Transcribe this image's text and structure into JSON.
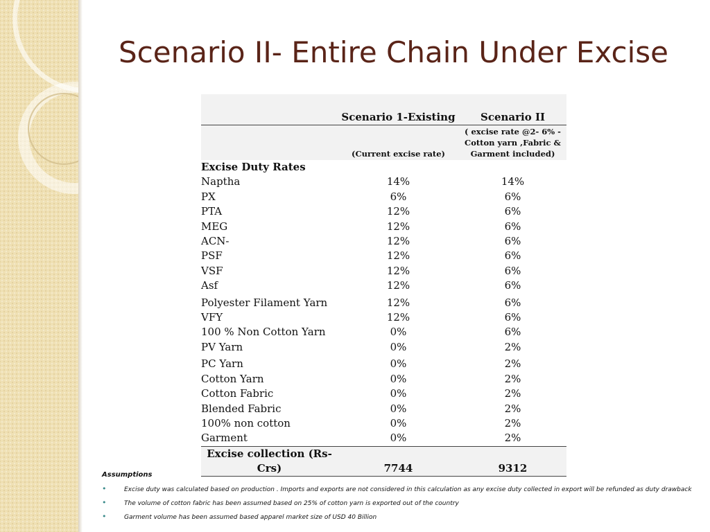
{
  "title": "Scenario II- Entire Chain Under Excise",
  "table": {
    "header": {
      "col2": "Scenario 1-Existing",
      "col3": "Scenario II",
      "col2_sub": "(Current excise rate)",
      "col3_sub": "(  excise rate @2- 6% -Cotton yarn ,Fabric & Garment included)"
    },
    "section_label": "Excise Duty Rates",
    "rows": [
      {
        "item": "Naptha",
        "existing": "14%",
        "scenario2": "14%"
      },
      {
        "item": "PX",
        "existing": "6%",
        "scenario2": "6%"
      },
      {
        "item": "PTA",
        "existing": "12%",
        "scenario2": "6%"
      },
      {
        "item": "MEG",
        "existing": "12%",
        "scenario2": "6%"
      },
      {
        "item": "ACN-",
        "existing": "12%",
        "scenario2": "6%"
      },
      {
        "item": "PSF",
        "existing": "12%",
        "scenario2": "6%"
      },
      {
        "item": "VSF",
        "existing": "12%",
        "scenario2": "6%"
      },
      {
        "item": "Asf",
        "existing": "12%",
        "scenario2": "6%"
      },
      {
        "item": "Polyester Filament Yarn",
        "existing": "12%",
        "scenario2": "6%"
      },
      {
        "item": "VFY",
        "existing": "12%",
        "scenario2": "6%"
      },
      {
        "item": "100 % Non Cotton Yarn",
        "existing": "0%",
        "scenario2": "6%"
      },
      {
        "item": "PV Yarn",
        "existing": "0%",
        "scenario2": "2%"
      },
      {
        "item": "PC Yarn",
        "existing": "0%",
        "scenario2": "2%"
      },
      {
        "item": "Cotton Yarn",
        "existing": "0%",
        "scenario2": "2%"
      },
      {
        "item": "Cotton Fabric",
        "existing": "0%",
        "scenario2": "2%"
      },
      {
        "item": "Blended Fabric",
        "existing": "0%",
        "scenario2": "2%"
      },
      {
        "item": "100% non cotton",
        "existing": "0%",
        "scenario2": "2%"
      },
      {
        "item": "Garment",
        "existing": "0%",
        "scenario2": "2%"
      }
    ],
    "total": {
      "label": "Excise collection (Rs-Crs)",
      "existing": "7744",
      "scenario2": "9312"
    }
  },
  "assumptions": {
    "heading": "Assumptions",
    "items": [
      "Excise duty  was calculated based on  production . Imports and exports are not considered in this calculation as any excise duty collected in export will be refunded as  duty drawback",
      "The volume of cotton fabric  has been assumed based on 25% of cotton yarn is exported out of the country",
      "Garment volume has been assumed based apparel market size of USD 40 Billion"
    ]
  },
  "colors": {
    "title": "#5a2418",
    "sidebar": "#efe0b4",
    "bullet": "#3a8a8a"
  }
}
